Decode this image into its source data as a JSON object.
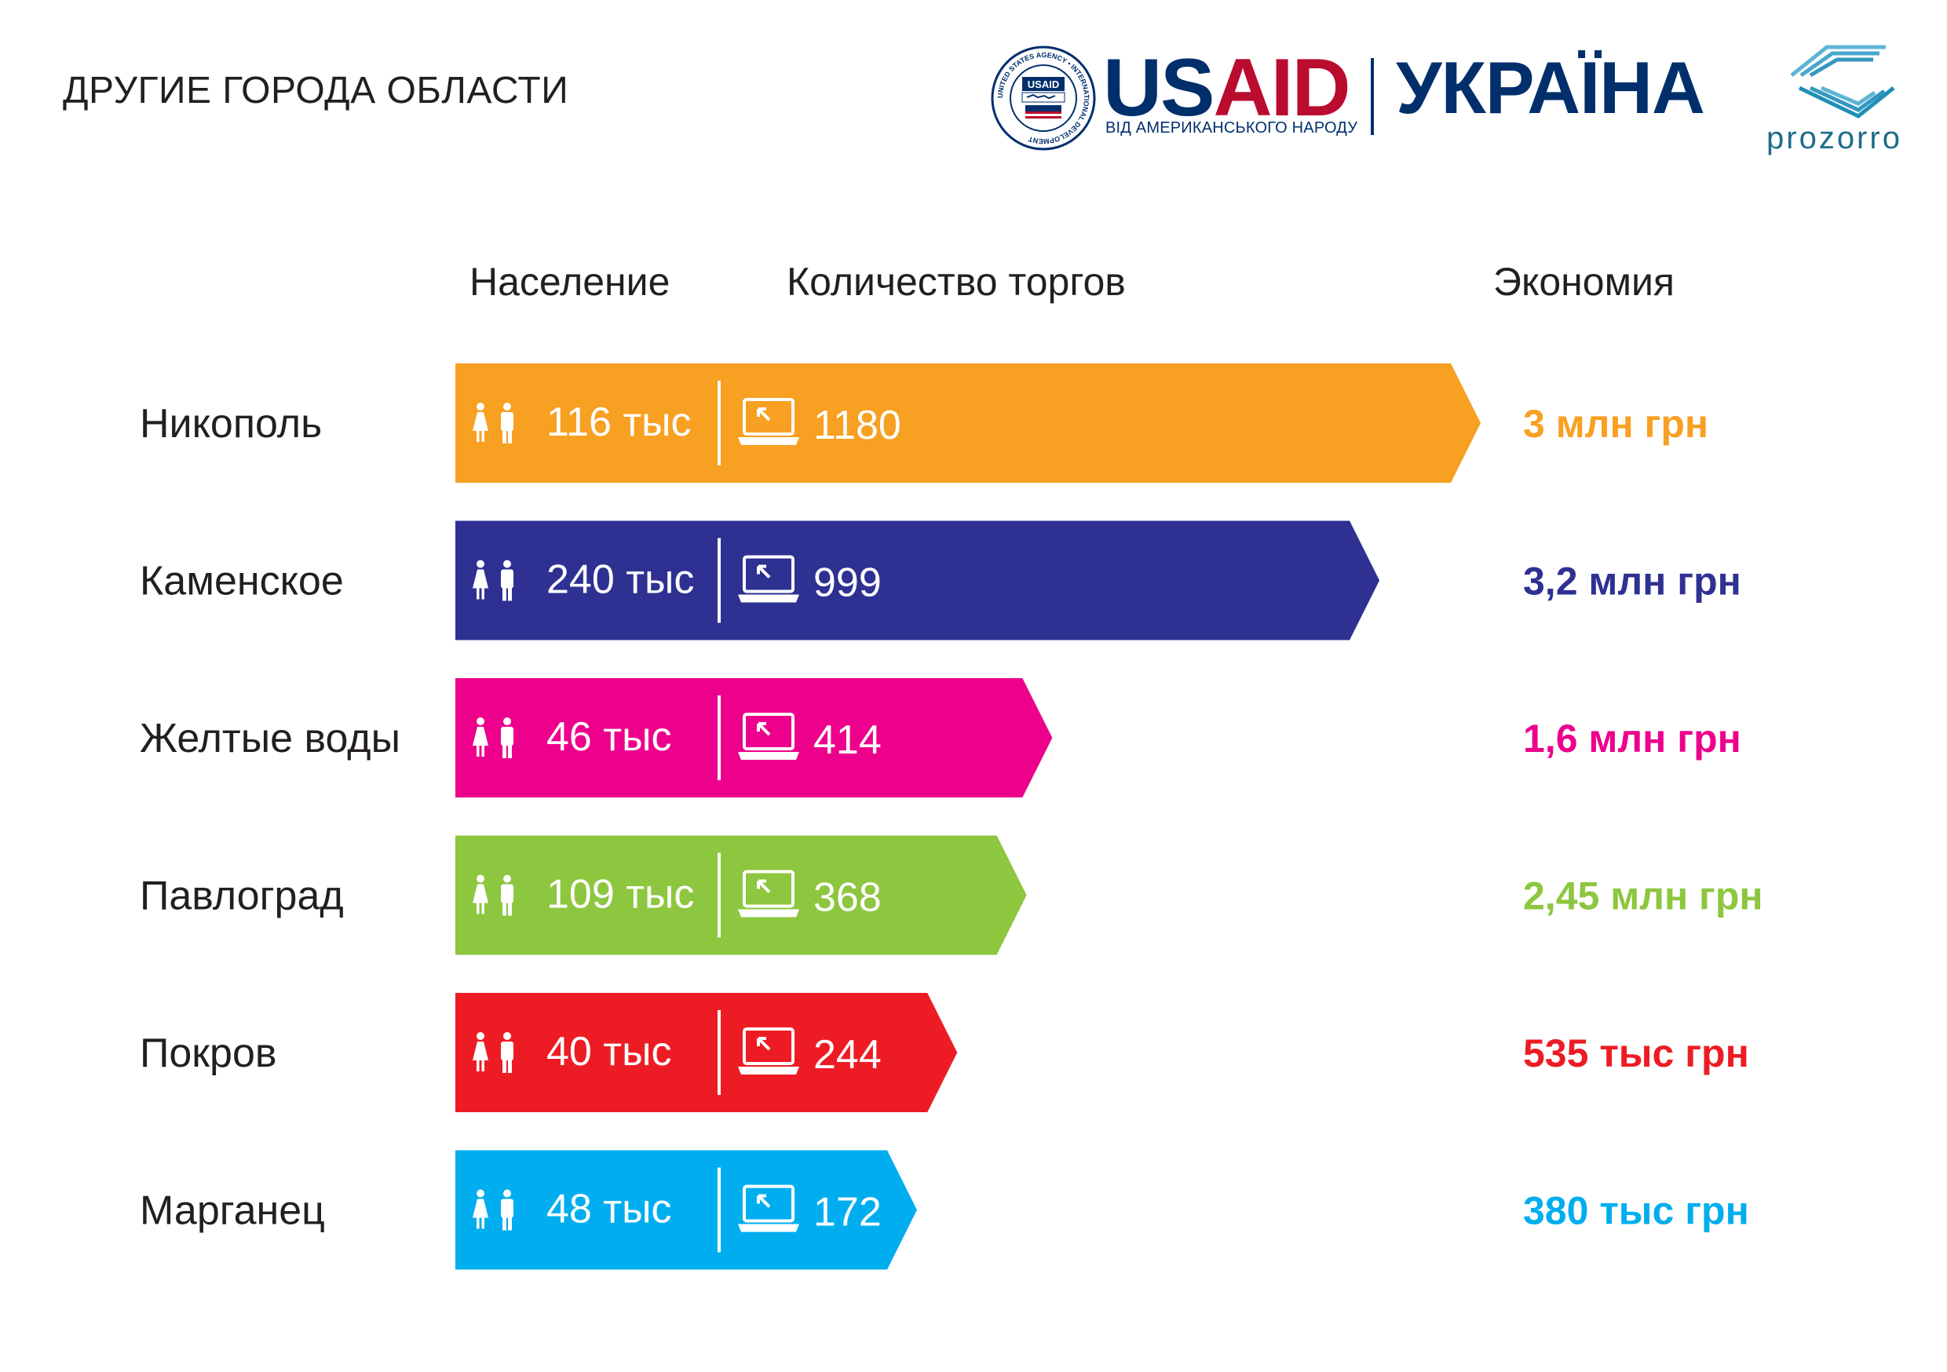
{
  "page": {
    "title": "ДРУГИЕ ГОРОДА ОБЛАСТИ"
  },
  "logos": {
    "usaid_us": "US",
    "usaid_aid": "AID",
    "usaid_tagline": "ВІД АМЕРИКАНСЬКОГО НАРОДУ",
    "ukraina": "УКРАЇНА",
    "prozorro": "prozorro",
    "seal_text": "UNITED STATES AGENCY • INTERNATIONAL DEVELOPMENT",
    "colors": {
      "usaid_blue": "#002f6c",
      "usaid_red": "#ba0c2f",
      "prozorro_teal": "#1f8fb8"
    }
  },
  "headers": {
    "population": "Население",
    "tenders": "Количество торгов",
    "savings": "Экономия"
  },
  "icons": {
    "population": "people-icon",
    "tenders": "laptop-icon"
  },
  "chart_data": {
    "type": "bar",
    "orientation": "horizontal",
    "title": "ДРУГИЕ ГОРОДА ОБЛАСТИ",
    "value_label": "Количество торгов",
    "categories": [
      "Никополь",
      "Каменское",
      "Желтые воды",
      "Павлоград",
      "Покров",
      "Марганец"
    ],
    "values": [
      1180,
      999,
      414,
      368,
      244,
      172
    ],
    "population": [
      "116 тыс",
      "240 тыс",
      "46 тыс",
      "109 тыс",
      "40 тыс",
      "48 тыс"
    ],
    "savings": [
      "3 млн грн",
      "3,2 млн грн",
      "1,6 млн грн",
      "2,45 млн грн",
      "535 тыс грн",
      "380 тыс грн"
    ],
    "colors": [
      "#f7a021",
      "#2e3192",
      "#ec008c",
      "#8dc63f",
      "#ed1c24",
      "#00aeef"
    ],
    "grid": false,
    "legend": "none"
  }
}
